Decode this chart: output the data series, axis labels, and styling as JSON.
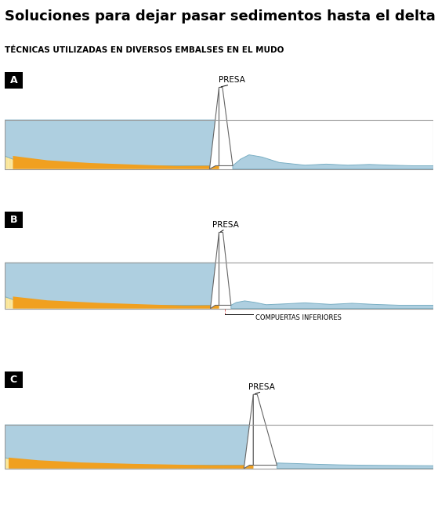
{
  "title": "Soluciones para dejar pasar sedimentos hasta el delta",
  "subtitle": "TÉCNICAS UTILIZADAS EN DIVERSOS EMBALSES EN EL MUDO",
  "water_color": "#aecfe0",
  "water_edge_color": "#7aafc4",
  "orange_color": "#f0a020",
  "yellow_color": "#f5dc70",
  "yellow_light": "#fdf5c0",
  "dam_color": "#ffffff",
  "dam_edge_color": "#666666",
  "border_color": "#999999",
  "bg_color": "#ffffff",
  "presa_label": "PRESA",
  "compuertas_label": "COMPUERTAS INFERIORES",
  "title_fontsize": 13,
  "subtitle_fontsize": 7.5
}
